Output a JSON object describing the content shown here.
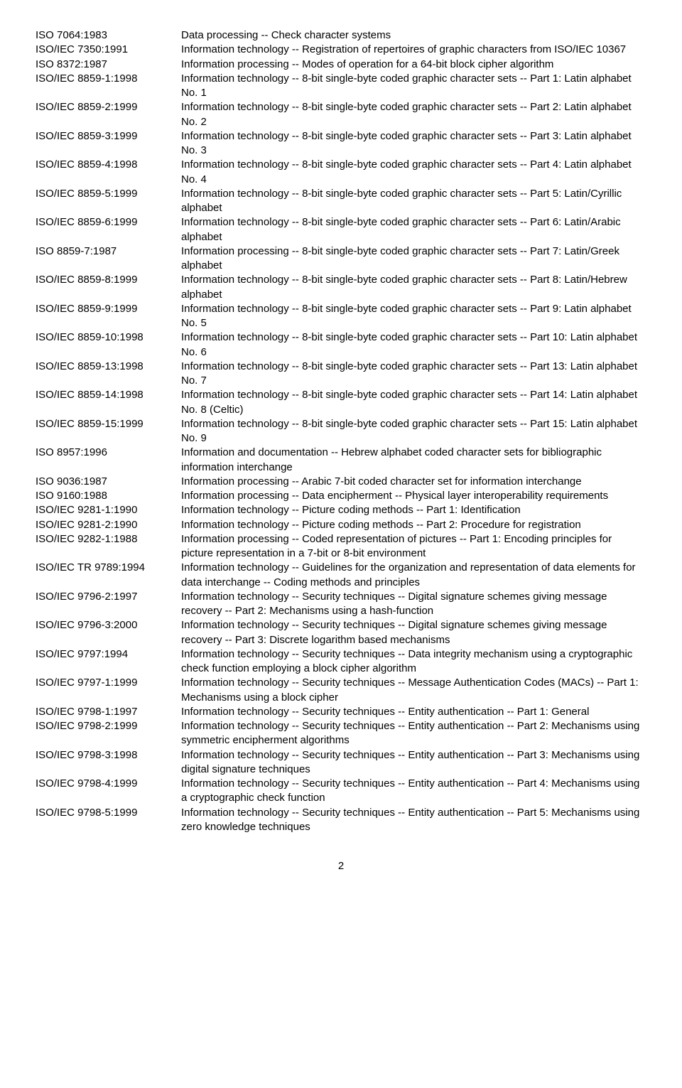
{
  "entries": [
    {
      "code": "ISO 7064:1983",
      "desc": "Data processing -- Check character systems"
    },
    {
      "code": "ISO/IEC 7350:1991",
      "desc": "Information technology -- Registration of repertoires of graphic characters from ISO/IEC 10367"
    },
    {
      "code": "ISO 8372:1987",
      "desc": "Information processing -- Modes of operation for a 64-bit block cipher algorithm"
    },
    {
      "code": "ISO/IEC 8859-1:1998",
      "desc": "Information technology -- 8-bit single-byte coded graphic character sets -- Part 1: Latin alphabet No. 1"
    },
    {
      "code": "ISO/IEC 8859-2:1999",
      "desc": "Information technology -- 8-bit single-byte coded graphic character sets -- Part 2: Latin alphabet No. 2"
    },
    {
      "code": "ISO/IEC 8859-3:1999",
      "desc": "Information technology -- 8-bit single-byte coded graphic character sets -- Part 3: Latin alphabet No. 3"
    },
    {
      "code": "ISO/IEC 8859-4:1998",
      "desc": "Information technology -- 8-bit single-byte coded graphic character sets -- Part 4: Latin alphabet No. 4"
    },
    {
      "code": "ISO/IEC 8859-5:1999",
      "desc": "Information technology -- 8-bit single-byte coded graphic character sets -- Part 5: Latin/Cyrillic alphabet"
    },
    {
      "code": "ISO/IEC 8859-6:1999",
      "desc": "Information technology -- 8-bit single-byte coded graphic character sets -- Part 6: Latin/Arabic alphabet"
    },
    {
      "code": "ISO 8859-7:1987",
      "desc": "Information processing -- 8-bit single-byte coded graphic character sets -- Part 7: Latin/Greek alphabet"
    },
    {
      "code": "ISO/IEC 8859-8:1999",
      "desc": "Information technology -- 8-bit single-byte coded graphic character sets -- Part 8: Latin/Hebrew alphabet"
    },
    {
      "code": "ISO/IEC 8859-9:1999",
      "desc": "Information technology -- 8-bit single-byte coded graphic character sets -- Part 9: Latin alphabet No. 5"
    },
    {
      "code": "ISO/IEC 8859-10:1998",
      "desc": "Information technology -- 8-bit single-byte coded graphic character sets -- Part 10: Latin alphabet No. 6"
    },
    {
      "code": "ISO/IEC 8859-13:1998",
      "desc": "Information technology -- 8-bit single-byte coded graphic character sets -- Part 13: Latin alphabet No. 7"
    },
    {
      "code": "ISO/IEC 8859-14:1998",
      "desc": "Information technology -- 8-bit single-byte coded graphic character sets -- Part 14: Latin alphabet No. 8 (Celtic)"
    },
    {
      "code": "ISO/IEC 8859-15:1999",
      "desc": "Information technology -- 8-bit single-byte coded graphic character sets -- Part 15: Latin alphabet No. 9"
    },
    {
      "code": "ISO 8957:1996",
      "desc": "Information and documentation -- Hebrew alphabet coded character sets for bibliographic information interchange"
    },
    {
      "code": "ISO 9036:1987",
      "desc": "Information processing -- Arabic 7-bit coded character set for information interchange"
    },
    {
      "code": "ISO 9160:1988",
      "desc": "Information processing -- Data encipherment -- Physical layer interoperability requirements"
    },
    {
      "code": "ISO/IEC 9281-1:1990",
      "desc": "Information technology -- Picture coding methods -- Part 1: Identification"
    },
    {
      "code": "ISO/IEC 9281-2:1990",
      "desc": "Information technology -- Picture coding methods -- Part 2: Procedure for registration"
    },
    {
      "code": "ISO/IEC 9282-1:1988",
      "desc": "Information processing -- Coded representation of pictures -- Part 1: Encoding principles for picture representation in a 7-bit or 8-bit environment"
    },
    {
      "code": "ISO/IEC TR 9789:1994",
      "desc": "Information technology -- Guidelines for the organization and representation of data elements for data interchange -- Coding methods and principles"
    },
    {
      "code": "ISO/IEC 9796-2:1997",
      "desc": "Information technology -- Security techniques -- Digital signature schemes giving message recovery -- Part 2: Mechanisms using a hash-function"
    },
    {
      "code": "ISO/IEC 9796-3:2000",
      "desc": "Information technology -- Security techniques -- Digital signature schemes giving message recovery -- Part 3: Discrete logarithm based mechanisms"
    },
    {
      "code": "ISO/IEC 9797:1994",
      "desc": "Information technology -- Security techniques -- Data integrity mechanism using a cryptographic check function employing a block cipher algorithm"
    },
    {
      "code": "ISO/IEC 9797-1:1999",
      "desc": "Information technology -- Security techniques -- Message Authentication Codes (MACs) -- Part 1: Mechanisms using a block cipher"
    },
    {
      "code": "ISO/IEC 9798-1:1997",
      "desc": "Information technology -- Security techniques -- Entity authentication -- Part 1: General"
    },
    {
      "code": "ISO/IEC 9798-2:1999",
      "desc": "Information technology -- Security techniques -- Entity authentication -- Part 2: Mechanisms using symmetric encipherment algorithms"
    },
    {
      "code": "ISO/IEC 9798-3:1998",
      "desc": "Information technology -- Security techniques -- Entity authentication -- Part 3: Mechanisms using digital signature techniques"
    },
    {
      "code": "ISO/IEC 9798-4:1999",
      "desc": "Information technology -- Security techniques -- Entity authentication -- Part 4: Mechanisms using a cryptographic check function"
    },
    {
      "code": "ISO/IEC 9798-5:1999",
      "desc": "Information technology -- Security techniques -- Entity authentication -- Part 5: Mechanisms using zero knowledge techniques"
    }
  ],
  "page_number": "2"
}
